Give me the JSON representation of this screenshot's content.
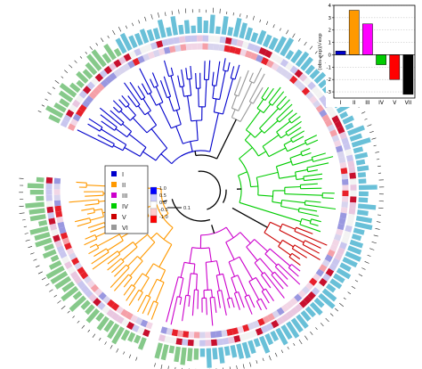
{
  "chart_data": [
    {
      "type": "dendrogram",
      "clusters": [
        {
          "name": "I",
          "color": "#0000cc"
        },
        {
          "name": "II",
          "color": "#ff9900"
        },
        {
          "name": "III",
          "color": "#cc00cc"
        },
        {
          "name": "IV",
          "color": "#00cc00"
        },
        {
          "name": "V",
          "color": "#cc0000"
        },
        {
          "name": "VI",
          "color": "#999999"
        }
      ],
      "legend_position": "left-center",
      "heatmap_scale": {
        "ticks": [
          "1.0",
          "0.5",
          "0.0",
          "-0.5",
          "-1.0"
        ],
        "colors": [
          "#0000ff",
          "#ccccff",
          "#ffffff",
          "#ffcccc",
          "#ff0000"
        ]
      },
      "tree_scale_label": "0.1"
    },
    {
      "type": "bar",
      "categories": [
        "I",
        "II",
        "III",
        "IV",
        "V",
        "VII"
      ],
      "values": [
        0.3,
        3.6,
        2.5,
        -0.8,
        -2.0,
        -3.2
      ],
      "colors": [
        "#0000cc",
        "#ff9900",
        "#ff00ff",
        "#00cc00",
        "#ff0000",
        "#000000"
      ],
      "ylabel": "(obs-exp)/√exp",
      "ylim": [
        -3.5,
        4
      ],
      "yticks": [
        4,
        3,
        2,
        1,
        0,
        -1,
        -2,
        -3
      ],
      "grid": true
    }
  ]
}
